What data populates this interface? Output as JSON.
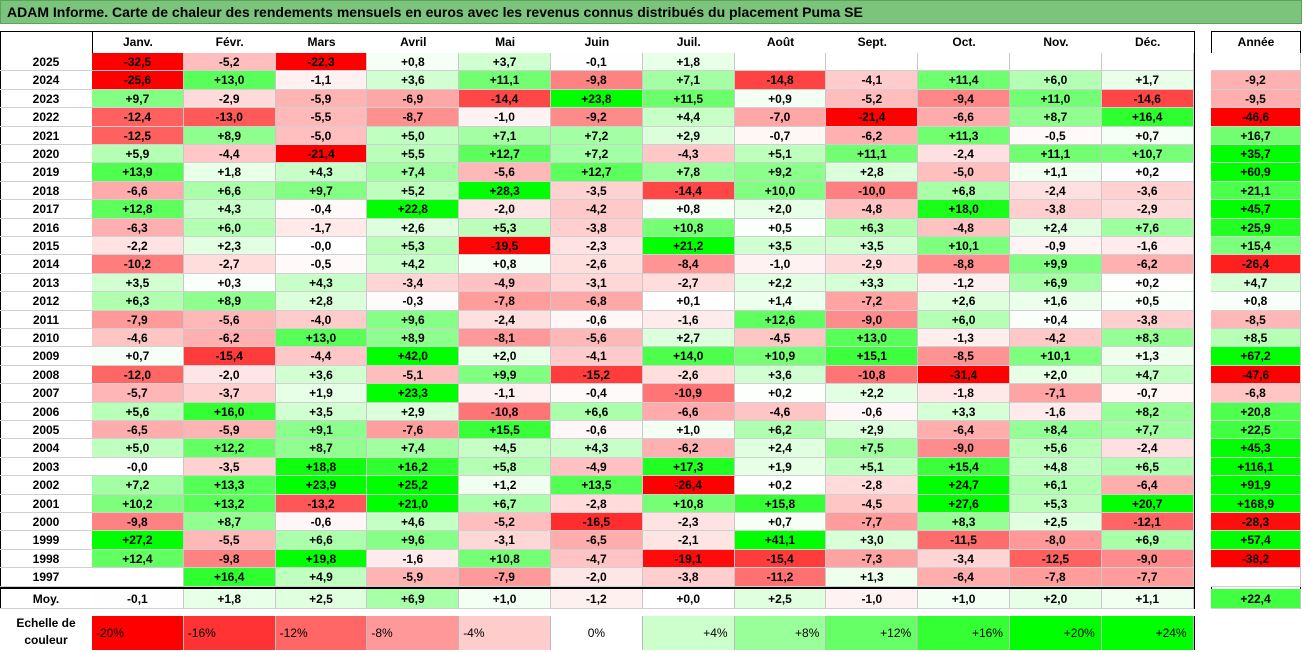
{
  "title": "ADAM Informe. Carte de chaleur des rendements mensuels en euros avec les revenus connus distribués du placement Puma SE",
  "colors": {
    "title_bar": "#7cc47b",
    "negative_max": "#ff0000",
    "positive_max": "#00ff00",
    "neutral": "#ffffff"
  },
  "chart_data": {
    "type": "heatmap",
    "title": "ADAM Informe. Carte de chaleur des rendements mensuels en euros avec les revenus connus distribués du placement Puma SE",
    "columns": [
      "Janv.",
      "Févr.",
      "Mars",
      "Avril",
      "Mai",
      "Juin",
      "Juil.",
      "Août",
      "Sept.",
      "Oct.",
      "Nov.",
      "Déc."
    ],
    "year_column_label": "Année",
    "average_row_label": "Moy.",
    "rows": [
      {
        "year": "2025",
        "months": [
          "-32,5",
          "-5,2",
          "-22,3",
          "+0,8",
          "+3,7",
          "-0,1",
          "+1,8",
          "",
          "",
          "",
          "",
          ""
        ],
        "annual": ""
      },
      {
        "year": "2024",
        "months": [
          "-25,6",
          "+13,0",
          "-1,1",
          "+3,6",
          "+11,1",
          "-9,8",
          "+7,1",
          "-14,8",
          "-4,1",
          "+11,4",
          "+6,0",
          "+1,7"
        ],
        "annual": "-9,2"
      },
      {
        "year": "2023",
        "months": [
          "+9,7",
          "-2,9",
          "-5,9",
          "-6,9",
          "-14,4",
          "+23,8",
          "+11,5",
          "+0,9",
          "-5,2",
          "-9,4",
          "+11,0",
          "-14,6"
        ],
        "annual": "-9,5"
      },
      {
        "year": "2022",
        "months": [
          "-12,4",
          "-13,0",
          "-5,5",
          "-8,7",
          "-1,0",
          "-9,2",
          "+4,4",
          "-7,0",
          "-21,4",
          "-6,6",
          "+8,7",
          "+16,4"
        ],
        "annual": "-46,6"
      },
      {
        "year": "2021",
        "months": [
          "-12,5",
          "+8,9",
          "-5,0",
          "+5,0",
          "+7,1",
          "+7,2",
          "+2,9",
          "-0,7",
          "-6,2",
          "+11,3",
          "-0,5",
          "+0,7"
        ],
        "annual": "+16,7"
      },
      {
        "year": "2020",
        "months": [
          "+5,9",
          "-4,4",
          "-21,4",
          "+5,5",
          "+12,7",
          "+7,2",
          "-4,3",
          "+5,1",
          "+11,1",
          "-2,4",
          "+11,1",
          "+10,7"
        ],
        "annual": "+35,7"
      },
      {
        "year": "2019",
        "months": [
          "+13,9",
          "+1,8",
          "+4,3",
          "+7,4",
          "-5,6",
          "+12,7",
          "+7,8",
          "+9,2",
          "+2,8",
          "-5,0",
          "+1,1",
          "+0,2"
        ],
        "annual": "+60,9"
      },
      {
        "year": "2018",
        "months": [
          "-6,6",
          "+6,6",
          "+9,7",
          "+5,2",
          "+28,3",
          "-3,5",
          "-14,4",
          "+10,0",
          "-10,0",
          "+6,8",
          "-2,4",
          "-3,6"
        ],
        "annual": "+21,1"
      },
      {
        "year": "2017",
        "months": [
          "+12,8",
          "+4,3",
          "-0,4",
          "+22,8",
          "-2,0",
          "-4,2",
          "+0,8",
          "+2,0",
          "-4,8",
          "+18,0",
          "-3,8",
          "-2,9"
        ],
        "annual": "+45,7"
      },
      {
        "year": "2016",
        "months": [
          "-6,3",
          "+6,0",
          "-1,7",
          "+2,6",
          "+5,3",
          "-3,8",
          "+10,8",
          "+0,5",
          "+6,3",
          "-4,8",
          "+2,4",
          "+7,6"
        ],
        "annual": "+25,9"
      },
      {
        "year": "2015",
        "months": [
          "-2,2",
          "+2,3",
          "-0,0",
          "+5,3",
          "-19,5",
          "-2,3",
          "+21,2",
          "+3,5",
          "+3,5",
          "+10,1",
          "-0,9",
          "-1,6"
        ],
        "annual": "+15,4"
      },
      {
        "year": "2014",
        "months": [
          "-10,2",
          "-2,7",
          "-0,5",
          "+4,2",
          "+0,8",
          "-2,6",
          "-8,4",
          "-1,0",
          "-2,9",
          "-8,8",
          "+9,9",
          "-6,2"
        ],
        "annual": "-26,4"
      },
      {
        "year": "2013",
        "months": [
          "+3,5",
          "+0,3",
          "+4,3",
          "-3,4",
          "-4,9",
          "-3,1",
          "-2,7",
          "+2,2",
          "+3,3",
          "-1,2",
          "+6,9",
          "+0,2"
        ],
        "annual": "+4,7"
      },
      {
        "year": "2012",
        "months": [
          "+6,3",
          "+8,9",
          "+2,8",
          "-0,3",
          "-7,8",
          "-6,8",
          "+0,1",
          "+1,4",
          "-7,2",
          "+2,6",
          "+1,6",
          "+0,5"
        ],
        "annual": "+0,8"
      },
      {
        "year": "2011",
        "months": [
          "-7,9",
          "-5,6",
          "-4,0",
          "+9,6",
          "-2,4",
          "-0,6",
          "-1,6",
          "+12,6",
          "-9,0",
          "+6,0",
          "+0,4",
          "-3,8"
        ],
        "annual": "-8,5"
      },
      {
        "year": "2010",
        "months": [
          "-4,6",
          "-6,2",
          "+13,0",
          "+8,9",
          "-8,1",
          "-5,6",
          "+2,7",
          "-4,5",
          "+13,0",
          "-1,3",
          "-4,2",
          "+8,3"
        ],
        "annual": "+8,5"
      },
      {
        "year": "2009",
        "months": [
          "+0,7",
          "-15,4",
          "-4,4",
          "+42,0",
          "+2,0",
          "-4,1",
          "+14,0",
          "+10,9",
          "+15,1",
          "-8,5",
          "+10,1",
          "+1,3"
        ],
        "annual": "+67,2"
      },
      {
        "year": "2008",
        "months": [
          "-12,0",
          "-2,0",
          "+3,6",
          "-5,1",
          "+9,9",
          "-15,2",
          "-2,6",
          "+3,6",
          "-10,8",
          "-31,4",
          "+2,0",
          "+4,7"
        ],
        "annual": "-47,6"
      },
      {
        "year": "2007",
        "months": [
          "-5,7",
          "-3,7",
          "+1,9",
          "+23,3",
          "-1,1",
          "-0,4",
          "-10,9",
          "+0,2",
          "+2,2",
          "-1,8",
          "-7,1",
          "-0,7"
        ],
        "annual": "-6,8"
      },
      {
        "year": "2006",
        "months": [
          "+5,6",
          "+16,0",
          "+3,5",
          "+2,9",
          "-10,8",
          "+6,6",
          "-6,6",
          "-4,6",
          "-0,6",
          "+3,3",
          "-1,6",
          "+8,2"
        ],
        "annual": "+20,8"
      },
      {
        "year": "2005",
        "months": [
          "-6,5",
          "-5,9",
          "+9,1",
          "-7,6",
          "+15,5",
          "-0,6",
          "+1,0",
          "+6,2",
          "+2,9",
          "-6,4",
          "+8,4",
          "+7,7"
        ],
        "annual": "+22,5"
      },
      {
        "year": "2004",
        "months": [
          "+5,0",
          "+12,2",
          "+8,7",
          "+7,4",
          "+4,5",
          "+4,3",
          "-6,2",
          "+2,4",
          "+7,5",
          "-9,0",
          "+5,6",
          "-2,4"
        ],
        "annual": "+45,3"
      },
      {
        "year": "2003",
        "months": [
          "-0,0",
          "-3,5",
          "+18,8",
          "+16,2",
          "+5,8",
          "-4,9",
          "+17,3",
          "+1,9",
          "+5,1",
          "+15,4",
          "+4,8",
          "+6,5"
        ],
        "annual": "+116,1"
      },
      {
        "year": "2002",
        "months": [
          "+7,2",
          "+13,3",
          "+23,9",
          "+25,2",
          "+1,2",
          "+13,5",
          "-26,4",
          "+0,2",
          "-2,8",
          "+24,7",
          "+6,1",
          "-6,4"
        ],
        "annual": "+91,9"
      },
      {
        "year": "2001",
        "months": [
          "+10,2",
          "+13,2",
          "-13,2",
          "+21,0",
          "+6,7",
          "-2,8",
          "+10,8",
          "+15,8",
          "-4,5",
          "+27,6",
          "+5,3",
          "+20,7"
        ],
        "annual": "+168,9"
      },
      {
        "year": "2000",
        "months": [
          "-9,8",
          "+8,7",
          "-0,6",
          "+4,6",
          "-5,2",
          "-16,5",
          "-2,3",
          "+0,7",
          "-7,7",
          "+8,3",
          "+2,5",
          "-12,1"
        ],
        "annual": "-28,3"
      },
      {
        "year": "1999",
        "months": [
          "+27,2",
          "-5,5",
          "+6,6",
          "+9,6",
          "-3,1",
          "-6,5",
          "-2,1",
          "+41,1",
          "+3,0",
          "-11,5",
          "-8,0",
          "+6,9"
        ],
        "annual": "+57,4"
      },
      {
        "year": "1998",
        "months": [
          "+12,4",
          "-9,8",
          "+19,8",
          "-1,6",
          "+10,8",
          "-4,7",
          "-19,1",
          "-15,4",
          "-7,3",
          "-3,4",
          "-12,5",
          "-9,0"
        ],
        "annual": "-38,2"
      },
      {
        "year": "1997",
        "months": [
          "",
          "+16,4",
          "+4,9",
          "-5,9",
          "-7,9",
          "-2,0",
          "-3,8",
          "-11,2",
          "+1,3",
          "-6,4",
          "-7,8",
          "-7,7"
        ],
        "annual": ""
      }
    ],
    "averages": {
      "months": [
        "-0,1",
        "+1,8",
        "+2,5",
        "+6,9",
        "+1,0",
        "-1,2",
        "+0,0",
        "+2,5",
        "-1,0",
        "+1,0",
        "+2,0",
        "+1,1"
      ],
      "annual": "+22,4"
    },
    "legend": {
      "label": "Echelle de couleur",
      "entries": [
        {
          "text": "-20%",
          "value": -20
        },
        {
          "text": "-16%",
          "value": -16
        },
        {
          "text": "-12%",
          "value": -12
        },
        {
          "text": "-8%",
          "value": -8
        },
        {
          "text": "-4%",
          "value": -4
        },
        {
          "text": "0%",
          "value": 0
        },
        {
          "text": "+4%",
          "value": 4
        },
        {
          "text": "+8%",
          "value": 8
        },
        {
          "text": "+12%",
          "value": 12
        },
        {
          "text": "+16%",
          "value": 16
        },
        {
          "text": "+20%",
          "value": 20
        },
        {
          "text": "+24%",
          "value": 24
        }
      ]
    }
  }
}
